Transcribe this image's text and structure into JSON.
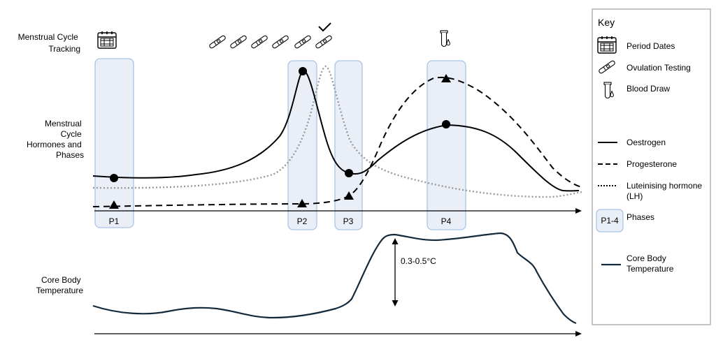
{
  "row_labels": {
    "tracking": [
      "Menstrual Cycle",
      "Tracking"
    ],
    "hormones": [
      "Menstrual",
      "Cycle",
      "Hormones and",
      "Phases"
    ],
    "temperature": [
      "Core Body",
      "Temperature"
    ]
  },
  "phases": [
    {
      "label": "P1"
    },
    {
      "label": "P2"
    },
    {
      "label": "P3"
    },
    {
      "label": "P4"
    }
  ],
  "temperature_rise_label": "0.3-0.5°C",
  "key": {
    "title": "Key",
    "items": {
      "period_dates": "Period Dates",
      "ovulation_testing": "Ovulation Testing",
      "blood_draw": "Blood Draw",
      "oestrogen": "Oestrogen",
      "progesterone": "Progesterone",
      "lh": [
        "Luteinising hormone",
        "(LH)"
      ],
      "phases_swatch": "P1-4",
      "phases": "Phases",
      "core_body_temperature": [
        "Core Body",
        "Temperature"
      ]
    }
  },
  "colors": {
    "phase_fill": "#e9eef7",
    "phase_stroke": "#a9c4e6",
    "lh_line": "#999999",
    "temperature_line": "#142a3b",
    "key_border": "#a6a6a6"
  },
  "icons": {
    "tracking_calendar": "calendar-icon",
    "ovulation_tests": "ovulation-test-icon",
    "confirmed_test": "checkmark-icon",
    "blood_draw": "blood-tube-icon"
  }
}
